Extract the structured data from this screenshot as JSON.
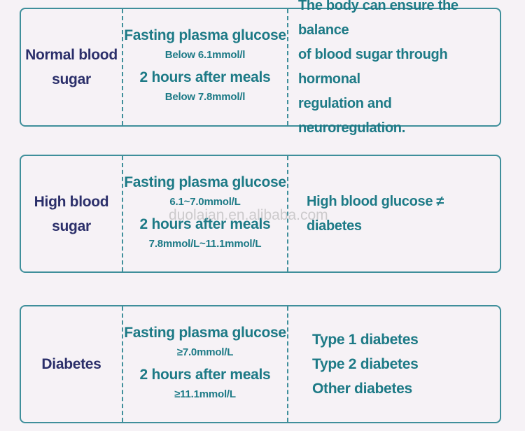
{
  "rows": [
    {
      "label": [
        "Normal blood",
        "sugar"
      ],
      "fasting_title": "Fasting plasma glucose",
      "fasting_value": "Below 6.1mmol/l",
      "after_title": "2 hours after meals",
      "after_value": "Below 7.8mmol/l",
      "description": [
        "The body can ensure the balance",
        "of blood sugar through hormonal",
        "regulation and neuroregulation."
      ]
    },
    {
      "label": [
        "High blood",
        "sugar"
      ],
      "fasting_title": "Fasting plasma glucose",
      "fasting_value": "6.1~7.0mmol/L",
      "after_title": "2 hours after meals",
      "after_value": "7.8mmol/L~11.1mmol/L",
      "description": [
        "High blood glucose ≠ diabetes"
      ]
    },
    {
      "label": [
        "Diabetes"
      ],
      "fasting_title": "Fasting plasma glucose",
      "fasting_value": "≥7.0mmol/L",
      "after_title": "2 hours after meals",
      "after_value": "≥11.1mmol/L",
      "types": [
        "Type 1 diabetes",
        "Type 2 diabetes",
        "Other diabetes"
      ]
    }
  ],
  "watermark": "duolaian.en.alibaba.com",
  "colors": {
    "border": "#3f8f9b",
    "label": "#2b2f6a",
    "accent": "#1d7a86",
    "background": "#f6f2f6"
  }
}
